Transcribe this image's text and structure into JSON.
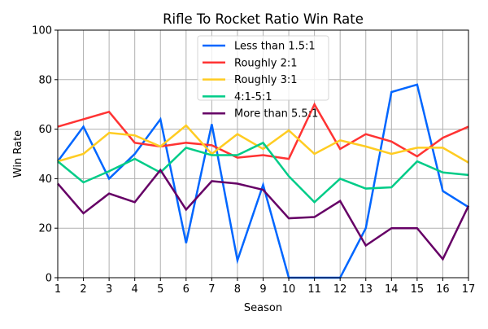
{
  "chart_data": {
    "type": "line",
    "title": "Rifle To Rocket Ratio Win Rate",
    "xlabel": "Season",
    "ylabel": "Win Rate",
    "xlim": [
      1,
      17
    ],
    "ylim": [
      0,
      100
    ],
    "x": [
      1,
      2,
      3,
      4,
      5,
      6,
      7,
      8,
      9,
      10,
      11,
      12,
      13,
      14,
      15,
      16,
      17
    ],
    "xticks": [
      "1",
      "2",
      "3",
      "4",
      "5",
      "6",
      "7",
      "8",
      "9",
      "10",
      "11",
      "12",
      "13",
      "14",
      "15",
      "16",
      "17"
    ],
    "yticks": [
      "0",
      "20",
      "40",
      "60",
      "80",
      "100"
    ],
    "grid": true,
    "legend_position": "top-center",
    "series": [
      {
        "name": "Less than 1.5:1",
        "color": "#0066ff",
        "values": [
          47,
          61,
          40,
          50,
          64,
          14,
          62,
          7,
          37.5,
          0,
          0,
          0,
          20,
          75,
          78,
          35,
          28.5
        ]
      },
      {
        "name": "Roughly 2:1",
        "color": "#ff3333",
        "values": [
          61,
          64,
          67,
          54.5,
          53,
          54.5,
          53.5,
          48.5,
          49.5,
          48,
          70,
          52,
          58,
          55,
          49,
          56.5,
          61
        ]
      },
      {
        "name": "Roughly 3:1",
        "color": "#ffcc22",
        "values": [
          47,
          50,
          58.5,
          57.5,
          53,
          61.5,
          50,
          58,
          52,
          59.5,
          50,
          55.5,
          53,
          50,
          52.5,
          52.5,
          46.5
        ]
      },
      {
        "name": "4:1-5:1",
        "color": "#00cc88",
        "values": [
          47,
          38.5,
          43,
          48,
          42.5,
          52.5,
          49.5,
          49.5,
          54.5,
          41,
          30.5,
          40,
          36,
          36.5,
          47,
          42.5,
          41.5
        ]
      },
      {
        "name": "More than 5.5:1",
        "color": "#660066",
        "values": [
          38,
          26,
          34,
          30.5,
          43.5,
          27.5,
          39,
          38,
          35.5,
          24,
          24.5,
          31,
          13,
          20,
          20,
          7.5,
          29
        ]
      }
    ]
  }
}
